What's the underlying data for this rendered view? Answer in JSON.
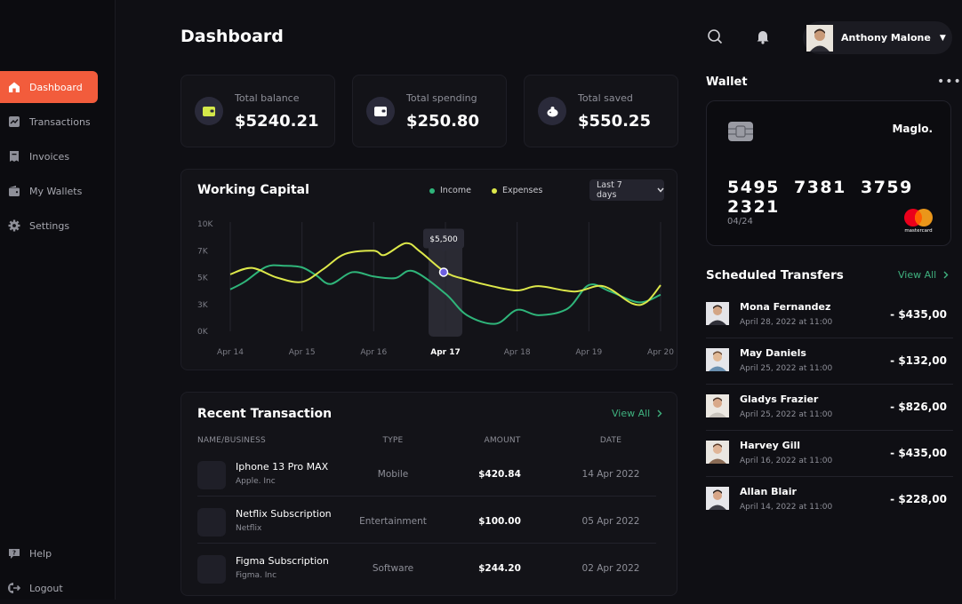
{
  "sidebar": {
    "items": [
      {
        "label": "Dashboard",
        "icon": "home-icon",
        "active": true
      },
      {
        "label": "Transactions",
        "icon": "chart-icon"
      },
      {
        "label": "Invoices",
        "icon": "invoice-icon"
      },
      {
        "label": "My Wallets",
        "icon": "wallet-icon"
      },
      {
        "label": "Settings",
        "icon": "gear-icon"
      }
    ],
    "bottom": [
      {
        "label": "Help",
        "icon": "help-icon"
      },
      {
        "label": "Logout",
        "icon": "logout-icon"
      }
    ]
  },
  "header": {
    "title": "Dashboard",
    "user_name": "Anthony Malone"
  },
  "stats": [
    {
      "label": "Total balance",
      "value": "$5240.21",
      "icon": "wallet-icon"
    },
    {
      "label": "Total spending",
      "value": "$250.80",
      "icon": "wallet-outline-icon"
    },
    {
      "label": "Total saved",
      "value": "$550.25",
      "icon": "piggy-bank-icon"
    }
  ],
  "working_capital": {
    "title": "Working Capital",
    "legend_income": "Income",
    "legend_expenses": "Expenses",
    "range": "Last 7 days",
    "tooltip": "$5,500",
    "income_color": "#2fb57a",
    "expenses_color": "#dde84a"
  },
  "chart_data": {
    "type": "line",
    "title": "Working Capital",
    "y_ticks": [
      "10K",
      "7K",
      "5K",
      "3K",
      "0K"
    ],
    "x": [
      "Apr 14",
      "Apr 15",
      "Apr 16",
      "Apr 17",
      "Apr 18",
      "Apr 19",
      "Apr 20"
    ],
    "highlight": "Apr 17",
    "ylim": [
      0,
      10000
    ],
    "series": [
      {
        "name": "Income",
        "points": [
          [
            0,
            3900
          ],
          [
            0.2,
            4600
          ],
          [
            0.5,
            6000
          ],
          [
            0.75,
            6100
          ],
          [
            1.0,
            5950
          ],
          [
            1.2,
            5200
          ],
          [
            1.4,
            4400
          ],
          [
            1.7,
            5500
          ],
          [
            2.0,
            5100
          ],
          [
            2.3,
            4950
          ],
          [
            2.55,
            5600
          ],
          [
            3.0,
            3500
          ],
          [
            3.3,
            1500
          ],
          [
            3.7,
            700
          ],
          [
            4.0,
            2000
          ],
          [
            4.3,
            1500
          ],
          [
            4.7,
            2100
          ],
          [
            5.0,
            4300
          ],
          [
            5.3,
            3700
          ],
          [
            5.7,
            2700
          ],
          [
            6.0,
            3400
          ]
        ]
      },
      {
        "name": "Expenses",
        "points": [
          [
            0,
            5300
          ],
          [
            0.3,
            5900
          ],
          [
            0.65,
            5000
          ],
          [
            1.0,
            4600
          ],
          [
            1.3,
            5800
          ],
          [
            1.6,
            7200
          ],
          [
            2.0,
            7500
          ],
          [
            2.15,
            7100
          ],
          [
            2.45,
            8200
          ],
          [
            2.65,
            7400
          ],
          [
            3.0,
            5500
          ],
          [
            3.3,
            4800
          ],
          [
            3.65,
            4200
          ],
          [
            4.0,
            3800
          ],
          [
            4.3,
            4200
          ],
          [
            4.8,
            3700
          ],
          [
            5.2,
            4200
          ],
          [
            5.6,
            2600
          ],
          [
            5.8,
            2700
          ],
          [
            6.0,
            4300
          ]
        ]
      }
    ]
  },
  "transactions": {
    "title": "Recent Transaction",
    "view_all": "View All",
    "headers": [
      "NAME/BUSINESS",
      "TYPE",
      "AMOUNT",
      "DATE"
    ],
    "rows": [
      {
        "name": "Iphone 13 Pro MAX",
        "business": "Apple. Inc",
        "type": "Mobile",
        "amount": "$420.84",
        "date": "14 Apr 2022"
      },
      {
        "name": "Netflix Subscription",
        "business": "Netflix",
        "type": "Entertainment",
        "amount": "$100.00",
        "date": "05 Apr 2022"
      },
      {
        "name": "Figma Subscription",
        "business": "Figma. Inc",
        "type": "Software",
        "amount": "$244.20",
        "date": "02 Apr 2022"
      }
    ]
  },
  "wallet": {
    "title": "Wallet",
    "card_brand": "Maglo.",
    "card_number": "5495 7381 3759 2321",
    "card_expiry": "04/24",
    "network_label": "mastercard"
  },
  "scheduled": {
    "title": "Scheduled Transfers",
    "view_all": "View All",
    "items": [
      {
        "name": "Mona Fernandez",
        "date": "April 28, 2022 at 11:00",
        "amount": "- $435,00"
      },
      {
        "name": "May Daniels",
        "date": "April 25, 2022 at 11:00",
        "amount": "- $132,00"
      },
      {
        "name": "Gladys Frazier",
        "date": "April 25, 2022 at 11:00",
        "amount": "- $826,00"
      },
      {
        "name": "Harvey Gill",
        "date": "April 16, 2022 at 11:00",
        "amount": "- $435,00"
      },
      {
        "name": "Allan Blair",
        "date": "April 14, 2022 at 11:00",
        "amount": "- $228,00"
      }
    ]
  }
}
